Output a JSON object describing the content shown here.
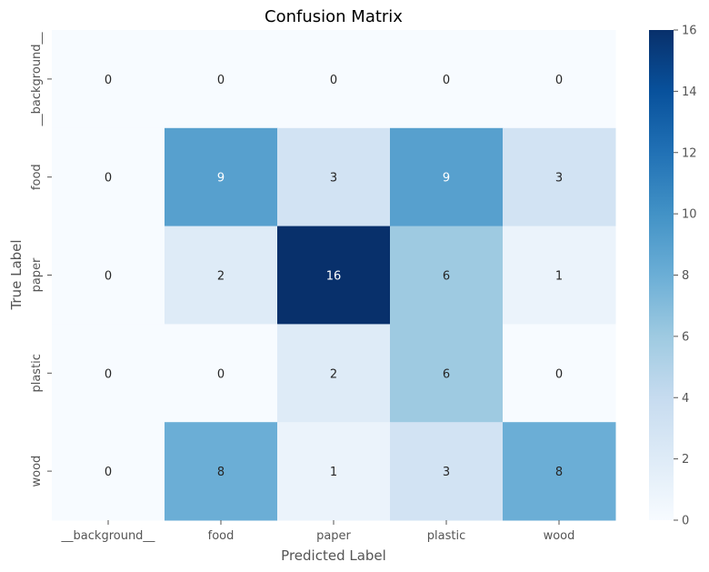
{
  "chart_data": {
    "type": "heatmap",
    "title": "Confusion Matrix",
    "xlabel": "Predicted Label",
    "ylabel": "True Label",
    "x_categories": [
      "__background__",
      "food",
      "paper",
      "plastic",
      "wood"
    ],
    "y_categories": [
      "__background__",
      "food",
      "paper",
      "plastic",
      "wood"
    ],
    "values": [
      [
        0,
        0,
        0,
        0,
        0
      ],
      [
        0,
        9,
        3,
        9,
        3
      ],
      [
        0,
        2,
        16,
        6,
        1
      ],
      [
        0,
        0,
        2,
        6,
        0
      ],
      [
        0,
        8,
        1,
        3,
        8
      ]
    ],
    "colormap": "Blues",
    "colorbar": {
      "min": 0,
      "max": 16,
      "ticks": [
        "0",
        "2",
        "4",
        "6",
        "8",
        "10",
        "12",
        "14",
        "16"
      ]
    },
    "annotate": true,
    "grid": false
  }
}
